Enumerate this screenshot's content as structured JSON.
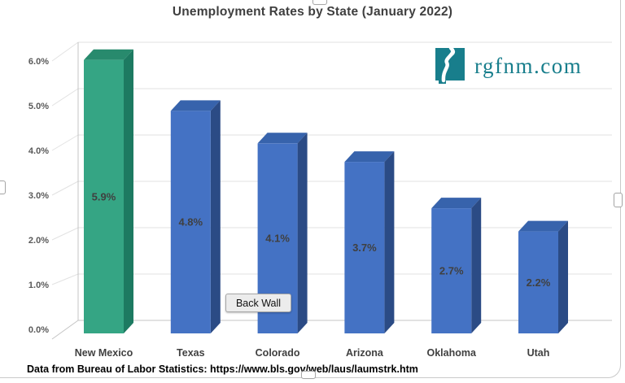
{
  "theme": {
    "accent_teal": "#187E8C",
    "title_color": "#3F3F3F",
    "label_color": "#404040",
    "tick_color": "#595959",
    "grid_color": "#E2E2E2",
    "axis_color": "#C4C4C4"
  },
  "logo": {
    "text": "rgfnm.com"
  },
  "tooltip": {
    "label": "Back Wall"
  },
  "footer": {
    "text": "Data from Bureau of Labor Statistics: https://www.bls.gov/web/laus/laumstrk.htm"
  },
  "chart_data": {
    "type": "bar",
    "subtype": "3d-column",
    "title": "Unemployment Rates by State (January 2022)",
    "categories": [
      "New Mexico",
      "Texas",
      "Colorado",
      "Arizona",
      "Oklahoma",
      "Utah"
    ],
    "values": [
      5.9,
      4.8,
      4.1,
      3.7,
      2.7,
      2.2
    ],
    "data_labels": [
      "5.9%",
      "4.8%",
      "4.1%",
      "3.7%",
      "2.7%",
      "2.2%"
    ],
    "y_ticks": [
      "0.0%",
      "1.0%",
      "2.0%",
      "3.0%",
      "4.0%",
      "5.0%",
      "6.0%"
    ],
    "y_tick_values": [
      0,
      1,
      2,
      3,
      4,
      5,
      6
    ],
    "ylim": [
      0,
      6
    ],
    "xlabel": "",
    "ylabel": "",
    "grid": true,
    "legend": "none",
    "highlight_index": 0,
    "colors": {
      "highlight": {
        "front": "#35A584",
        "top": "#288A6D",
        "side": "#1D7A61"
      },
      "default": {
        "front": "#4472C4",
        "top": "#3763AC",
        "side": "#2B4B85"
      }
    }
  }
}
